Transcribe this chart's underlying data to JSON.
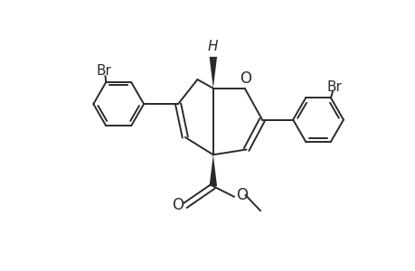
{
  "bg_color": "#ffffff",
  "line_color": "#2a2a2a",
  "line_width": 1.4,
  "figsize": [
    4.6,
    3.0
  ],
  "dpi": 100,
  "xlim": [
    -5.5,
    5.5
  ],
  "ylim": [
    -3.8,
    3.8
  ]
}
